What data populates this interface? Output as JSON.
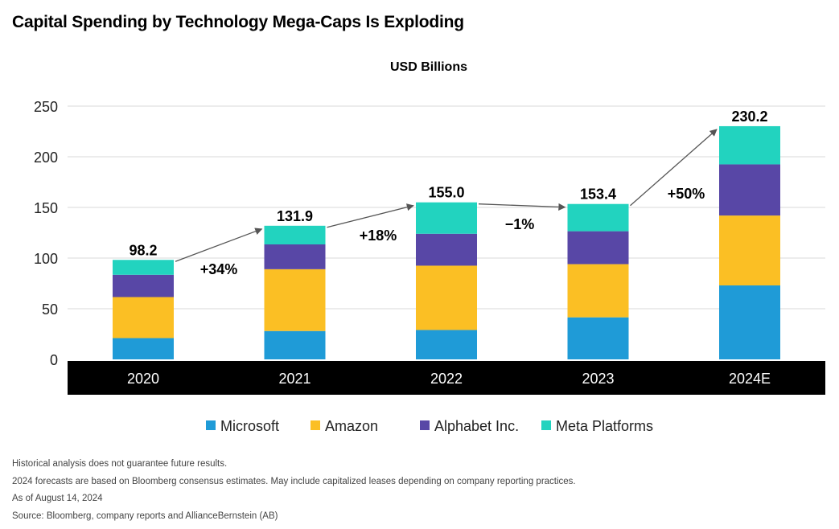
{
  "title": "Capital Spending by Technology Mega-Caps Is Exploding",
  "notes": [
    "Historical analysis does not guarantee future results.",
    "2024 forecasts are based on Bloomberg consensus estimates. May include capitalized leases depending on company reporting practices.",
    "As of August 14, 2024",
    "Source: Bloomberg, company reports and AllianceBernstein (AB)"
  ],
  "chart_data": {
    "type": "bar",
    "stacked": true,
    "subtitle": "USD Billions",
    "categories": [
      "2020",
      "2021",
      "2022",
      "2023",
      "2024E"
    ],
    "series": [
      {
        "name": "Microsoft",
        "color": "#1f9bd7",
        "values": [
          21.0,
          28.0,
          29.0,
          41.5,
          73.0
        ]
      },
      {
        "name": "Amazon",
        "color": "#fbbf24",
        "values": [
          40.5,
          61.0,
          63.5,
          52.5,
          69.0
        ]
      },
      {
        "name": "Alphabet Inc.",
        "color": "#5847a6",
        "values": [
          22.0,
          24.5,
          31.5,
          32.5,
          50.5
        ]
      },
      {
        "name": "Meta Platforms",
        "color": "#22d3bf",
        "values": [
          14.7,
          18.4,
          31.0,
          26.9,
          37.7
        ]
      }
    ],
    "totals": [
      "98.2",
      "131.9",
      "155.0",
      "153.4",
      "230.2"
    ],
    "growth_labels": [
      "+34%",
      "+18%",
      "−1%",
      "+50%"
    ],
    "ylim": [
      0,
      250
    ],
    "yticks": [
      0,
      50,
      100,
      150,
      200,
      250
    ],
    "grid": true,
    "legend_position": "bottom"
  }
}
